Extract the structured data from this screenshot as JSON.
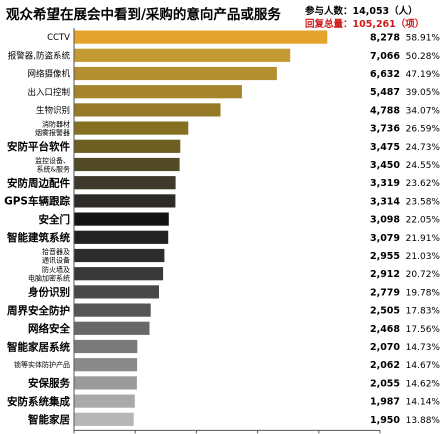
{
  "chart_data": {
    "type": "bar",
    "orientation": "horizontal",
    "title": "观众希望在展会中看到/采购的意向产品或服务",
    "participants_text": "参与人数：14,053（人）",
    "responses_text": "回复总量：105,261（项）",
    "xlim": [
      0,
      10000
    ],
    "x_ticks": [
      "0",
      "2000",
      "4000",
      "6000",
      "8000",
      "10000"
    ],
    "grid": false,
    "categories": [
      "CCTV",
      "报警器,防盗系统",
      "网络摄像机",
      "出入口控制",
      "生物识别",
      "消防器材\n烟雾报警器",
      "安防平台软件",
      "监控设备、\n系统&服务",
      "安防周边配件",
      "GPS车辆跟踪",
      "安全门",
      "智能建筑系统",
      "拾音器及\n通讯设备",
      "防火墙及\n电脑加密系统",
      "身份识别",
      "周界安全防护",
      "网络安全",
      "智能家居系统",
      "锁等实体防护产品",
      "安保服务",
      "安防系统集成",
      "智能家居"
    ],
    "values": [
      8278,
      7066,
      6632,
      5487,
      4788,
      3736,
      3475,
      3450,
      3319,
      3314,
      3098,
      3079,
      2955,
      2912,
      2779,
      2505,
      2468,
      2070,
      2062,
      2055,
      1987,
      1950
    ],
    "value_labels": [
      "8,278",
      "7,066",
      "6,632",
      "5,487",
      "4,788",
      "3,736",
      "3,475",
      "3,450",
      "3,319",
      "3,314",
      "3,098",
      "3,079",
      "2,955",
      "2,912",
      "2,779",
      "2,505",
      "2,468",
      "2,070",
      "2,062",
      "2,055",
      "1,987",
      "1,950"
    ],
    "percent_labels": [
      "58.91%",
      "50.28%",
      "47.19%",
      "39.05%",
      "34.07%",
      "26.59%",
      "24.73%",
      "24.55%",
      "23.62%",
      "23.58%",
      "22.05%",
      "21.91%",
      "21.03%",
      "20.72%",
      "19.78%",
      "17.83%",
      "17.56%",
      "14.73%",
      "14.67%",
      "14.62%",
      "14.14%",
      "13.88%"
    ],
    "bar_colors": [
      "#E3A32C",
      "#C49A33",
      "#B3902F",
      "#A5852C",
      "#967926",
      "#857022",
      "#6D5F22",
      "#514A24",
      "#3D3A2C",
      "#2C2B27",
      "#141414",
      "#222222",
      "#2C2C2C",
      "#383838",
      "#484848",
      "#565656",
      "#686868",
      "#7A7A7A",
      "#8A8A8A",
      "#9A9A9A",
      "#A9A9A9",
      "#B6B6B6"
    ],
    "label_styles": [
      "lat",
      "small",
      "small",
      "small",
      "small",
      "tiny",
      "big",
      "tiny",
      "big",
      "big",
      "big",
      "big",
      "tiny",
      "tiny",
      "big",
      "big",
      "big",
      "big",
      "tiny",
      "big",
      "big",
      "big"
    ]
  }
}
